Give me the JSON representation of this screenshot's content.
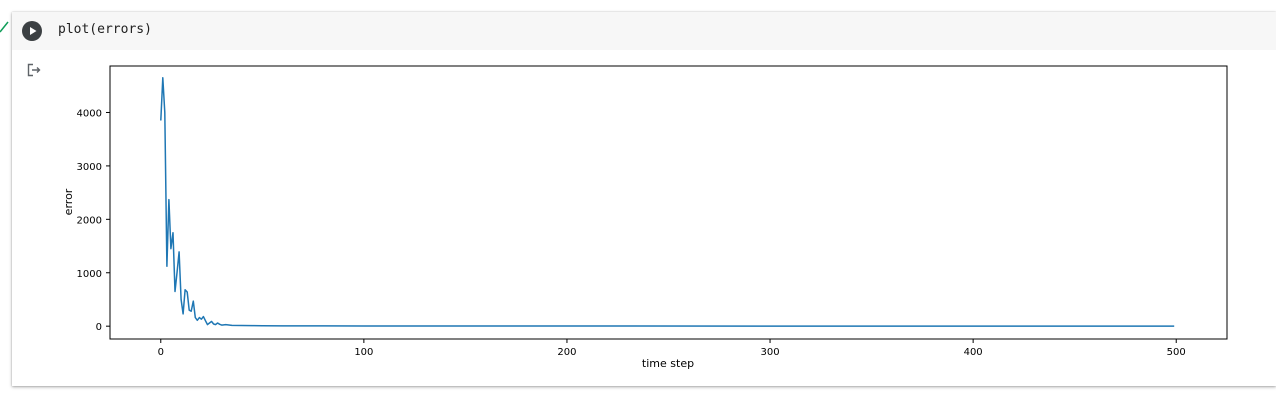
{
  "cell": {
    "code": "plot(errors)",
    "run_icon": "play-icon",
    "output_icon": "output-redirect-icon",
    "exec_status": "complete"
  },
  "chart_data": {
    "type": "line",
    "title": "",
    "xlabel": "time step",
    "ylabel": "error",
    "xlim": [
      -25,
      525
    ],
    "ylim": [
      -240,
      4870
    ],
    "xticks": [
      0,
      100,
      200,
      300,
      400,
      500
    ],
    "yticks": [
      0,
      1000,
      2000,
      3000,
      4000
    ],
    "grid": false,
    "color": "#1f77b4",
    "series": [
      {
        "name": "errors",
        "x": [
          0,
          1,
          2,
          3,
          4,
          5,
          6,
          7,
          8,
          9,
          10,
          11,
          12,
          13,
          14,
          15,
          16,
          17,
          18,
          19,
          20,
          21,
          22,
          23,
          24,
          25,
          26,
          27,
          28,
          29,
          30,
          32,
          35,
          40,
          45,
          50,
          60,
          80,
          100,
          150,
          200,
          300,
          400,
          499
        ],
        "y": [
          3850,
          4650,
          4000,
          1120,
          2370,
          1450,
          1750,
          650,
          1000,
          1390,
          500,
          230,
          680,
          640,
          300,
          280,
          470,
          160,
          110,
          160,
          130,
          180,
          100,
          30,
          60,
          90,
          40,
          30,
          60,
          35,
          20,
          30,
          15,
          12,
          10,
          8,
          6,
          5,
          4,
          3,
          3,
          2,
          2,
          2
        ]
      }
    ]
  }
}
